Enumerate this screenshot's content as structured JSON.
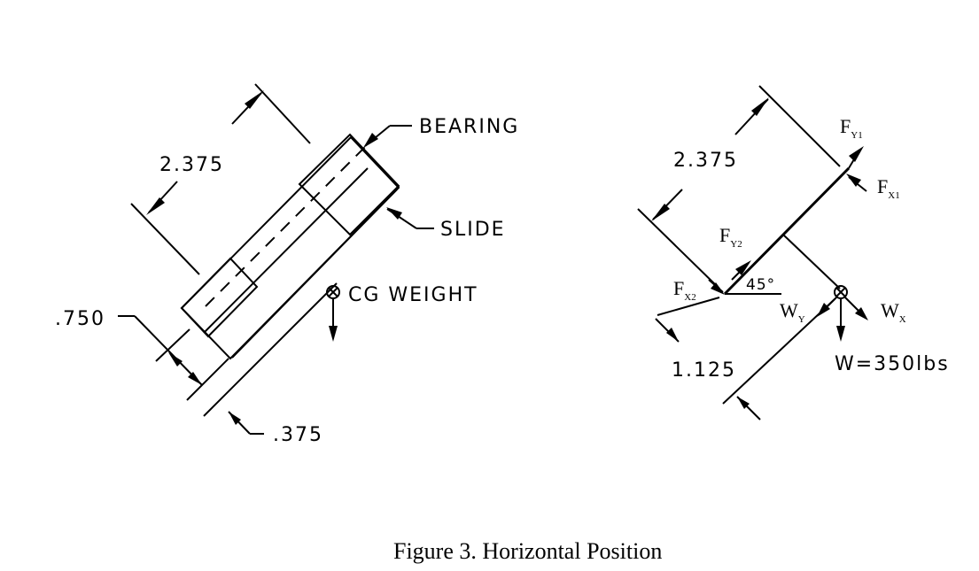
{
  "left": {
    "dim_top": "2.375",
    "dim_left": ".750",
    "dim_bottom": ".375",
    "label_bearing": "BEARING",
    "label_slide": "SLIDE",
    "label_cg": "CG WEIGHT"
  },
  "right": {
    "dim_top": "2.375",
    "dim_bottom": "1.125",
    "angle": "45°",
    "weight": "W=350lbs",
    "fy1": {
      "main": "F",
      "sub": "Y1"
    },
    "fx1": {
      "main": "F",
      "sub": "X1"
    },
    "fy2": {
      "main": "F",
      "sub": "Y2"
    },
    "fx2": {
      "main": "F",
      "sub": "X2"
    },
    "wy": {
      "main": "W",
      "sub": "Y"
    },
    "wx": {
      "main": "W",
      "sub": "X"
    }
  },
  "caption": "Figure 3.  Horizontal Position"
}
